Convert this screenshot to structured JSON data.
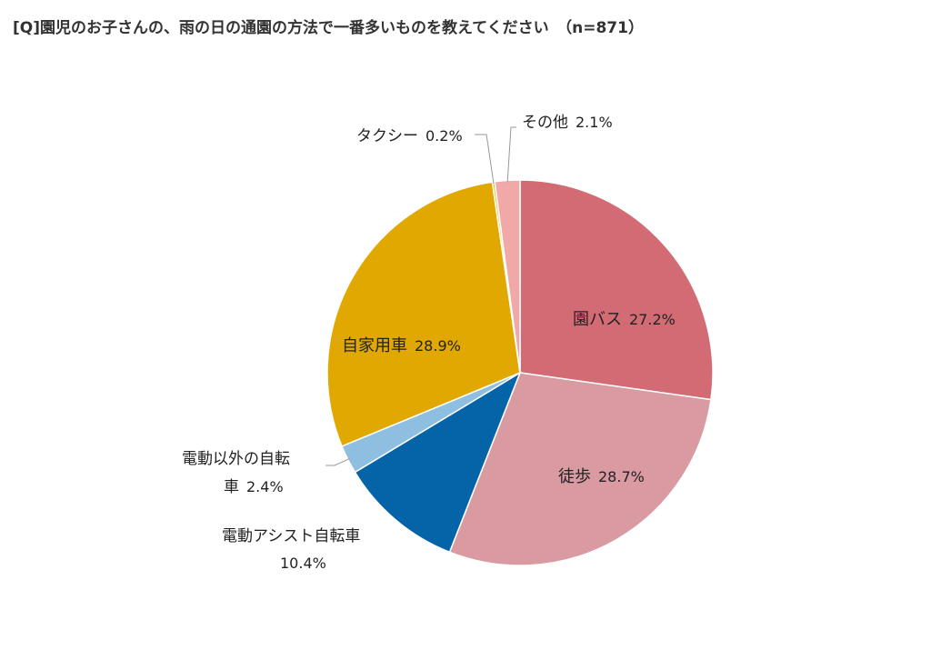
{
  "chart_data": {
    "type": "pie",
    "title": "[Q]園児のお子さんの、雨の日の通園の方法で一番多いものを教えてください　（n=871）",
    "slices": [
      {
        "label": "園バス",
        "value": 27.2,
        "pct_text": "27.2%",
        "color": "#d36b75"
      },
      {
        "label": "徒歩",
        "value": 28.7,
        "pct_text": "28.7%",
        "color": "#d99aa1"
      },
      {
        "label": "電動アシスト自転車",
        "value": 10.4,
        "pct_text": "10.4%",
        "color": "#0563a8"
      },
      {
        "label": "電動以外の自転車",
        "label_line1": "電動以外の自転",
        "label_line2": "車",
        "value": 2.4,
        "pct_text": "2.4%",
        "color": "#8fbfe0"
      },
      {
        "label": "自家用車",
        "value": 28.9,
        "pct_text": "28.9%",
        "color": "#e0a800"
      },
      {
        "label": "タクシー",
        "value": 0.2,
        "pct_text": "0.2%",
        "color": "#f0c419"
      },
      {
        "label": "その他",
        "value": 2.1,
        "pct_text": "2.1%",
        "color": "#f0a8a8"
      }
    ],
    "legend": "none",
    "data_labels": "label and percent"
  }
}
